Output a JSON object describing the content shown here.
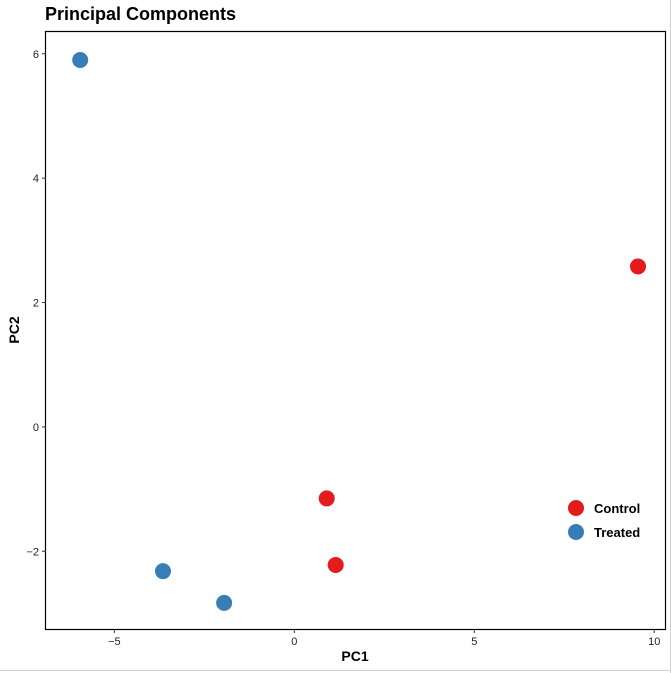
{
  "chart_data": {
    "type": "scatter",
    "title": "Principal Components",
    "xlabel": "PC1",
    "ylabel": "PC2",
    "xlim": [
      -6.9,
      10.3
    ],
    "ylim": [
      -3.25,
      6.35
    ],
    "x_ticks": [
      -5,
      0,
      5,
      10
    ],
    "x_tick_labels": [
      "−5",
      "0",
      "5",
      "10"
    ],
    "y_ticks": [
      -2,
      0,
      2,
      4,
      6
    ],
    "y_tick_labels": [
      "−2",
      "0",
      "2",
      "4",
      "6"
    ],
    "grid": false,
    "legend_position": "bottom-right",
    "series": [
      {
        "name": "Control",
        "color": "#E41A1C",
        "points": [
          {
            "x": 0.9,
            "y": -1.15
          },
          {
            "x": 1.15,
            "y": -2.22
          },
          {
            "x": 9.55,
            "y": 2.58
          }
        ]
      },
      {
        "name": "Treated",
        "color": "#377EB8",
        "points": [
          {
            "x": -5.95,
            "y": 5.9
          },
          {
            "x": -3.65,
            "y": -2.32
          },
          {
            "x": -1.95,
            "y": -2.83
          }
        ]
      }
    ]
  }
}
